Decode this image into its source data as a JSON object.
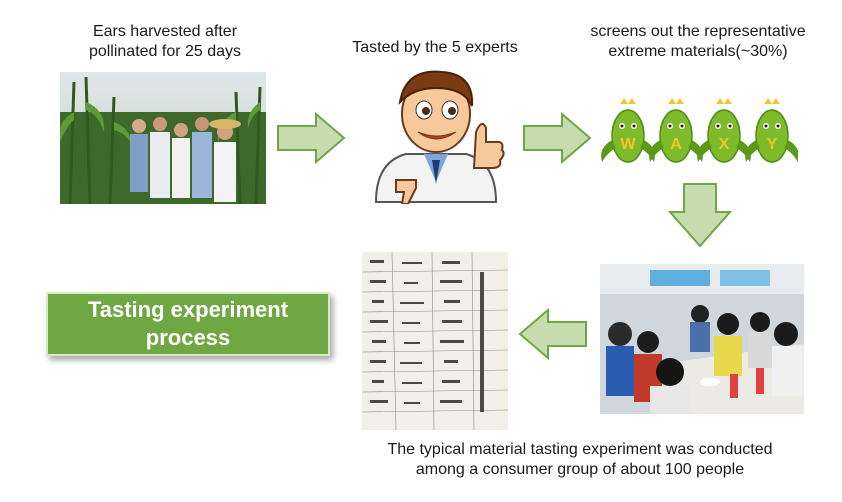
{
  "captions": {
    "harvest": [
      "Ears harvested after",
      "pollinated for 25 days"
    ],
    "tasted": "Tasted by the 5 experts",
    "screens": [
      "screens out the representative",
      "extreme materials(~30%)"
    ],
    "consumer": [
      "The typical material tasting experiment was conducted",
      "among a consumer group of about 100 people"
    ]
  },
  "corn_letters": [
    "W",
    "A",
    "X",
    "Y"
  ],
  "title": [
    "Tasting experiment",
    "process"
  ],
  "colors": {
    "arrow_fill": "#c6dcae",
    "arrow_stroke": "#6fa843",
    "title_bg": "#6fa843",
    "corn_green": "#7dbb2a",
    "corn_yellow": "#f2c52a"
  },
  "icons": {
    "arrow": "block-arrow",
    "expert": "cartoon-expert-thumbs-up",
    "corn": "waxy-corn-mascot"
  }
}
